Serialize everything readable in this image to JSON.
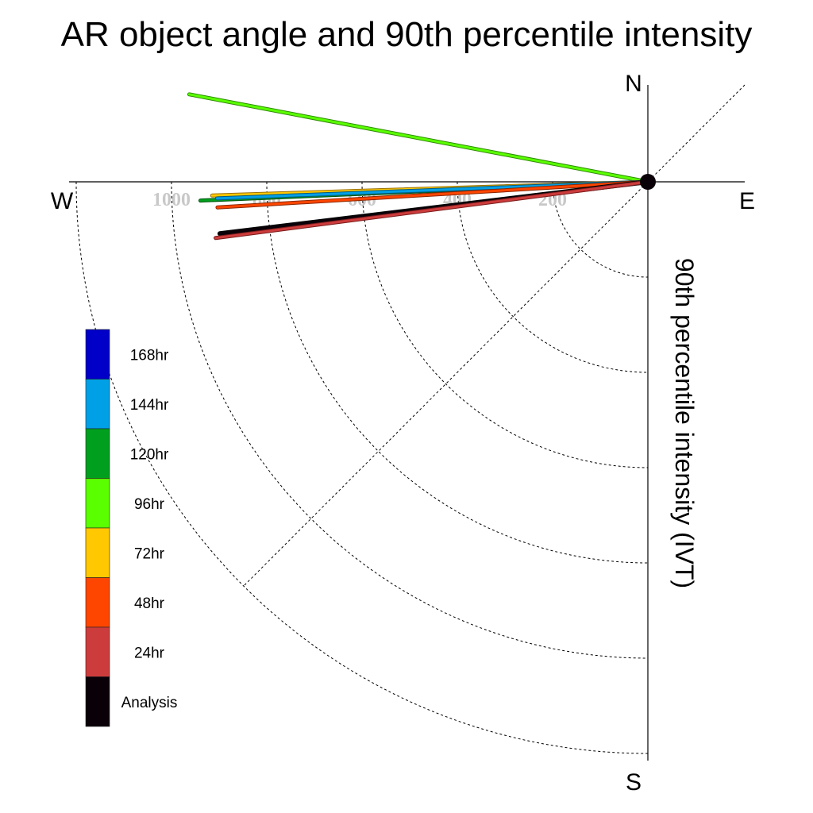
{
  "chart_data": {
    "type": "polar",
    "title": "AR object angle and 90th percentile intensity",
    "radial_axis_label": "90th percentile intensity (IVT)",
    "radial_ticks": [
      200,
      400,
      600,
      800,
      1000
    ],
    "radial_max": 1200,
    "compass": {
      "north": "N",
      "south": "S",
      "east": "E",
      "west": "W"
    },
    "legend": [
      {
        "label": "168hr",
        "color": "#0000c8"
      },
      {
        "label": "144hr",
        "color": "#00a0e6"
      },
      {
        "label": "120hr",
        "color": "#00a01e"
      },
      {
        "label": "96hr",
        "color": "#5aff00"
      },
      {
        "label": "72hr",
        "color": "#ffc800"
      },
      {
        "label": "48hr",
        "color": "#ff4600"
      },
      {
        "label": "24hr",
        "color": "#cd3c3c"
      },
      {
        "label": "Analysis",
        "color": "#0a0008"
      }
    ],
    "series": [
      {
        "name": "96hr",
        "direction_deg_from_north": 280.8,
        "intensity": 980,
        "color": "#5aff00",
        "outline": "#2e8b00",
        "width": 3
      },
      {
        "name": "72hr",
        "direction_deg_from_north": 268.2,
        "intensity": 915,
        "color": "#ffc800",
        "outline": "#9a7000",
        "width": 3
      },
      {
        "name": "120hr",
        "direction_deg_from_north": 267.6,
        "intensity": 940,
        "color": "#00a01e",
        "outline": "#005510",
        "width": 3
      },
      {
        "name": "144hr",
        "direction_deg_from_north": 267.8,
        "intensity": 905,
        "color": "#00a0e6",
        "outline": "#005a80",
        "width": 3
      },
      {
        "name": "48hr",
        "direction_deg_from_north": 266.6,
        "intensity": 905,
        "color": "#ff4600",
        "outline": "#8a2600",
        "width": 3
      },
      {
        "name": "Analysis",
        "direction_deg_from_north": 263.1,
        "intensity": 905,
        "color": "#0a0008",
        "outline": "#000000",
        "width": 4
      },
      {
        "name": "24hr",
        "direction_deg_from_north": 262.6,
        "intensity": 915,
        "color": "#cd3c3c",
        "outline": "#7a1c1c",
        "width": 3
      }
    ]
  }
}
